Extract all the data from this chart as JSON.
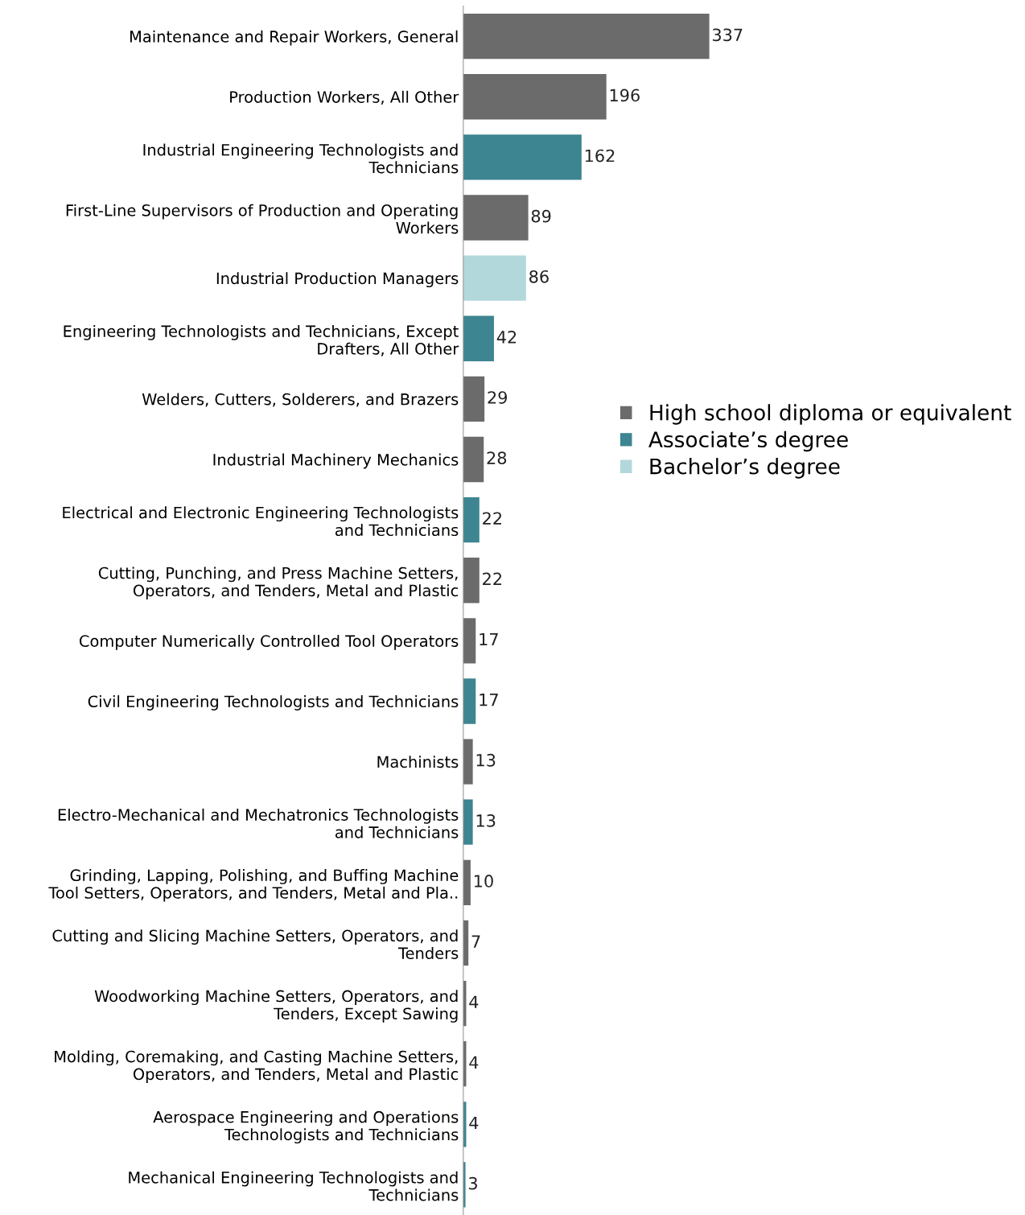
{
  "chart_data": {
    "type": "bar",
    "orientation": "horizontal",
    "data_labels": true,
    "legend": "right",
    "grid": false,
    "tick_labels": "y",
    "categories": [
      "Maintenance and Repair Workers, General",
      "Production Workers, All Other",
      "Industrial Engineering Technologists and\nTechnicians",
      "First-Line Supervisors of Production and Operating\nWorkers",
      "Industrial Production Managers",
      "Engineering Technologists and Technicians, Except\nDrafters, All Other",
      "Welders, Cutters, Solderers, and Brazers",
      "Industrial Machinery Mechanics",
      "Electrical and Electronic Engineering Technologists\nand Technicians",
      "Cutting, Punching, and Press Machine Setters,\nOperators, and Tenders, Metal and Plastic",
      "Computer Numerically Controlled Tool Operators",
      "Civil Engineering Technologists and Technicians",
      "Machinists",
      "Electro-Mechanical and Mechatronics Technologists\nand Technicians",
      "Grinding, Lapping, Polishing, and Buffing Machine\nTool Setters, Operators, and Tenders, Metal and Pla..",
      "Cutting and Slicing Machine Setters, Operators, and\nTenders",
      "Woodworking Machine Setters, Operators, and\nTenders, Except Sawing",
      "Molding, Coremaking, and Casting Machine Setters,\nOperators, and Tenders, Metal and Plastic",
      "Aerospace Engineering and Operations\nTechnologists and Technicians",
      "Mechanical Engineering Technologists and\nTechnicians"
    ],
    "series": [
      {
        "name": "High school diploma or equivalent",
        "color": "#6b6b6b",
        "values": [
          337,
          196,
          null,
          89,
          null,
          null,
          29,
          28,
          null,
          22,
          17,
          null,
          13,
          null,
          10,
          7,
          4,
          4,
          null,
          null
        ]
      },
      {
        "name": "Associate’s degree",
        "color": "#3d8590",
        "values": [
          null,
          null,
          162,
          null,
          null,
          42,
          null,
          null,
          22,
          null,
          null,
          17,
          null,
          13,
          null,
          null,
          null,
          null,
          4,
          3
        ]
      },
      {
        "name": "Bachelor’s degree",
        "color": "#b3d8dc",
        "values": [
          null,
          null,
          null,
          null,
          86,
          null,
          null,
          null,
          null,
          null,
          null,
          null,
          null,
          null,
          null,
          null,
          null,
          null,
          null,
          null
        ]
      }
    ]
  }
}
